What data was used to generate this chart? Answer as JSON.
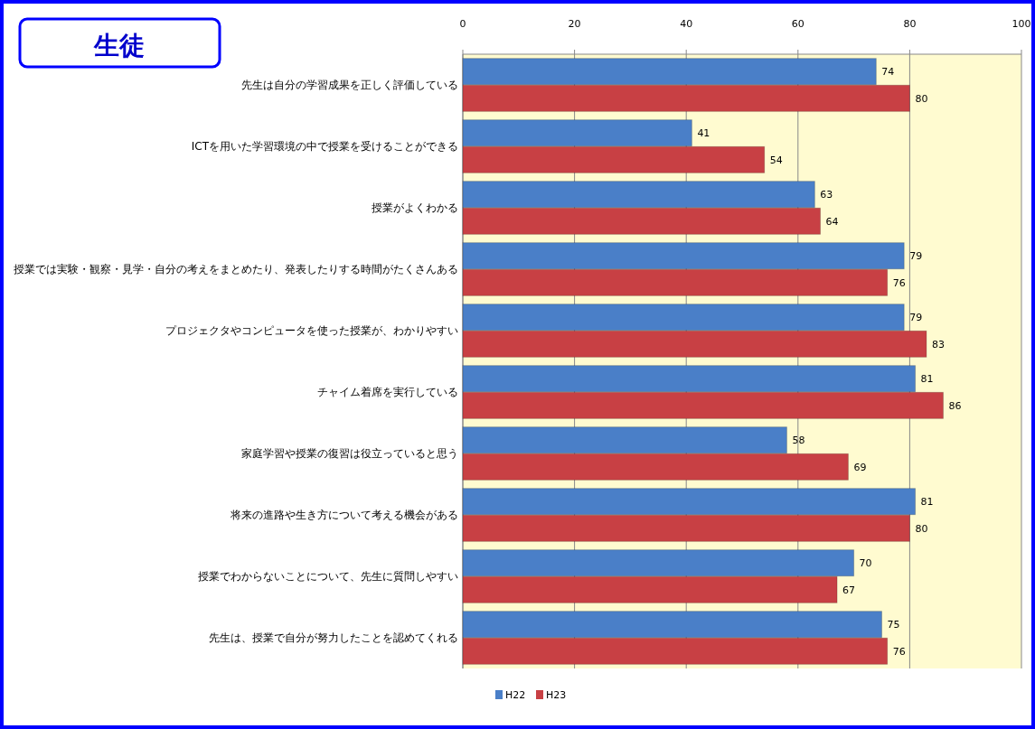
{
  "chart_data": {
    "type": "bar",
    "orientation": "horizontal",
    "title": "生徒",
    "categories": [
      "先生は自分の学習成果を正しく評価している",
      "ICTを用いた学習環境の中で授業を受けることができる",
      "授業がよくわかる",
      "授業では実験・観察・見学・自分の考えをまとめたり、発表したりする時間がたくさんある",
      "プロジェクタやコンピュータを使った授業が、わかりやすい",
      "チャイム着席を実行している",
      "家庭学習や授業の復習は役立っていると思う",
      "将来の進路や生き方について考える機会がある",
      "授業でわからないことについて、先生に質問しやすい",
      "先生は、授業で自分が努力したことを認めてくれる"
    ],
    "series": [
      {
        "name": "H22",
        "color": "#4a7fc8",
        "values": [
          74,
          41,
          63,
          79,
          79,
          81,
          58,
          81,
          70,
          75
        ]
      },
      {
        "name": "H23",
        "color": "#c84044",
        "values": [
          80,
          54,
          64,
          76,
          83,
          86,
          69,
          80,
          67,
          76
        ]
      }
    ],
    "xlim": [
      0,
      100
    ],
    "xticks": [
      0,
      20,
      40,
      60,
      80,
      100
    ],
    "grid": "x",
    "legend": "bottom",
    "data_labels": true
  }
}
